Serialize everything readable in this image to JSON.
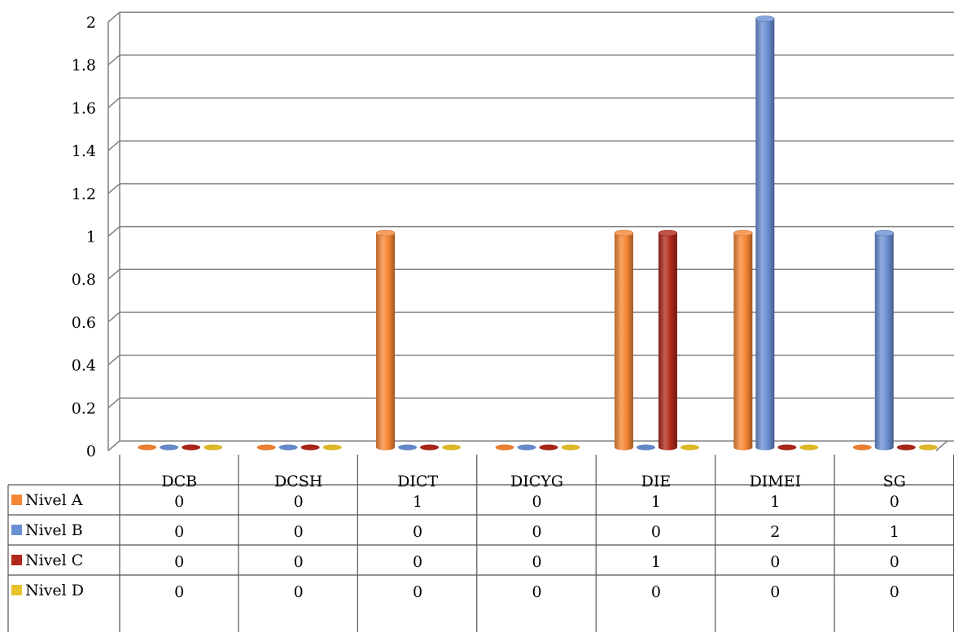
{
  "chart_data": {
    "type": "bar",
    "title": "",
    "xlabel": "",
    "ylabel": "",
    "ylim": [
      0,
      2
    ],
    "yticks": [
      "0",
      "0.2",
      "0.4",
      "0.6",
      "0.8",
      "1",
      "1.2",
      "1.4",
      "1.6",
      "1.8",
      "2"
    ],
    "grid": true,
    "legend": "data-table-left",
    "categories": [
      "DCB",
      "DCSH",
      "DICT",
      "DICYG",
      "DIE",
      "DIMEI",
      "SG"
    ],
    "series": [
      {
        "name": "Nivel A",
        "color": "#F58634",
        "values": [
          0,
          0,
          1,
          0,
          1,
          1,
          0
        ]
      },
      {
        "name": "Nivel B",
        "color": "#6A8FD3",
        "values": [
          0,
          0,
          0,
          0,
          0,
          2,
          1
        ]
      },
      {
        "name": "Nivel C",
        "color": "#B0281A",
        "values": [
          0,
          0,
          0,
          0,
          1,
          0,
          0
        ]
      },
      {
        "name": "Nivel D",
        "color": "#E8C22A",
        "values": [
          0,
          0,
          0,
          0,
          0,
          0,
          0
        ]
      }
    ]
  }
}
